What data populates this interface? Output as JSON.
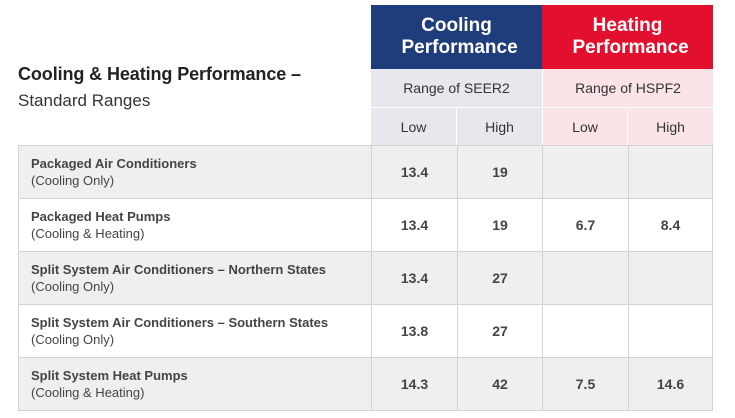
{
  "title": {
    "main": "Cooling & Heating Performance –",
    "sub": "Standard Ranges"
  },
  "headers": {
    "cooling": "Cooling Performance",
    "heating": "Heating Performance",
    "cooling_range": "Range of SEER2",
    "heating_range": "Range of HSPF2",
    "low": "Low",
    "high": "High"
  },
  "rows": [
    {
      "name": "Packaged Air Conditioners",
      "note": "(Cooling Only)",
      "seer_low": "13.4",
      "seer_high": "19",
      "hspf_low": "",
      "hspf_high": ""
    },
    {
      "name": "Packaged Heat Pumps",
      "note": "(Cooling & Heating)",
      "seer_low": "13.4",
      "seer_high": "19",
      "hspf_low": "6.7",
      "hspf_high": "8.4"
    },
    {
      "name": "Split System Air Conditioners – Northern States",
      "note": "(Cooling Only)",
      "seer_low": "13.4",
      "seer_high": "27",
      "hspf_low": "",
      "hspf_high": ""
    },
    {
      "name": "Split System Air Conditioners – Southern States",
      "note": "(Cooling Only)",
      "seer_low": "13.8",
      "seer_high": "27",
      "hspf_low": "",
      "hspf_high": ""
    },
    {
      "name": "Split System Heat Pumps",
      "note": "(Cooling & Heating)",
      "seer_low": "14.3",
      "seer_high": "42",
      "hspf_low": "7.5",
      "hspf_high": "14.6"
    }
  ],
  "colors": {
    "cooling_header": "#1f3d7a",
    "heating_header": "#e2102e",
    "cooling_light": "#e6e8ee",
    "heating_light": "#fbe3e8",
    "row_shade": "#efefef"
  }
}
